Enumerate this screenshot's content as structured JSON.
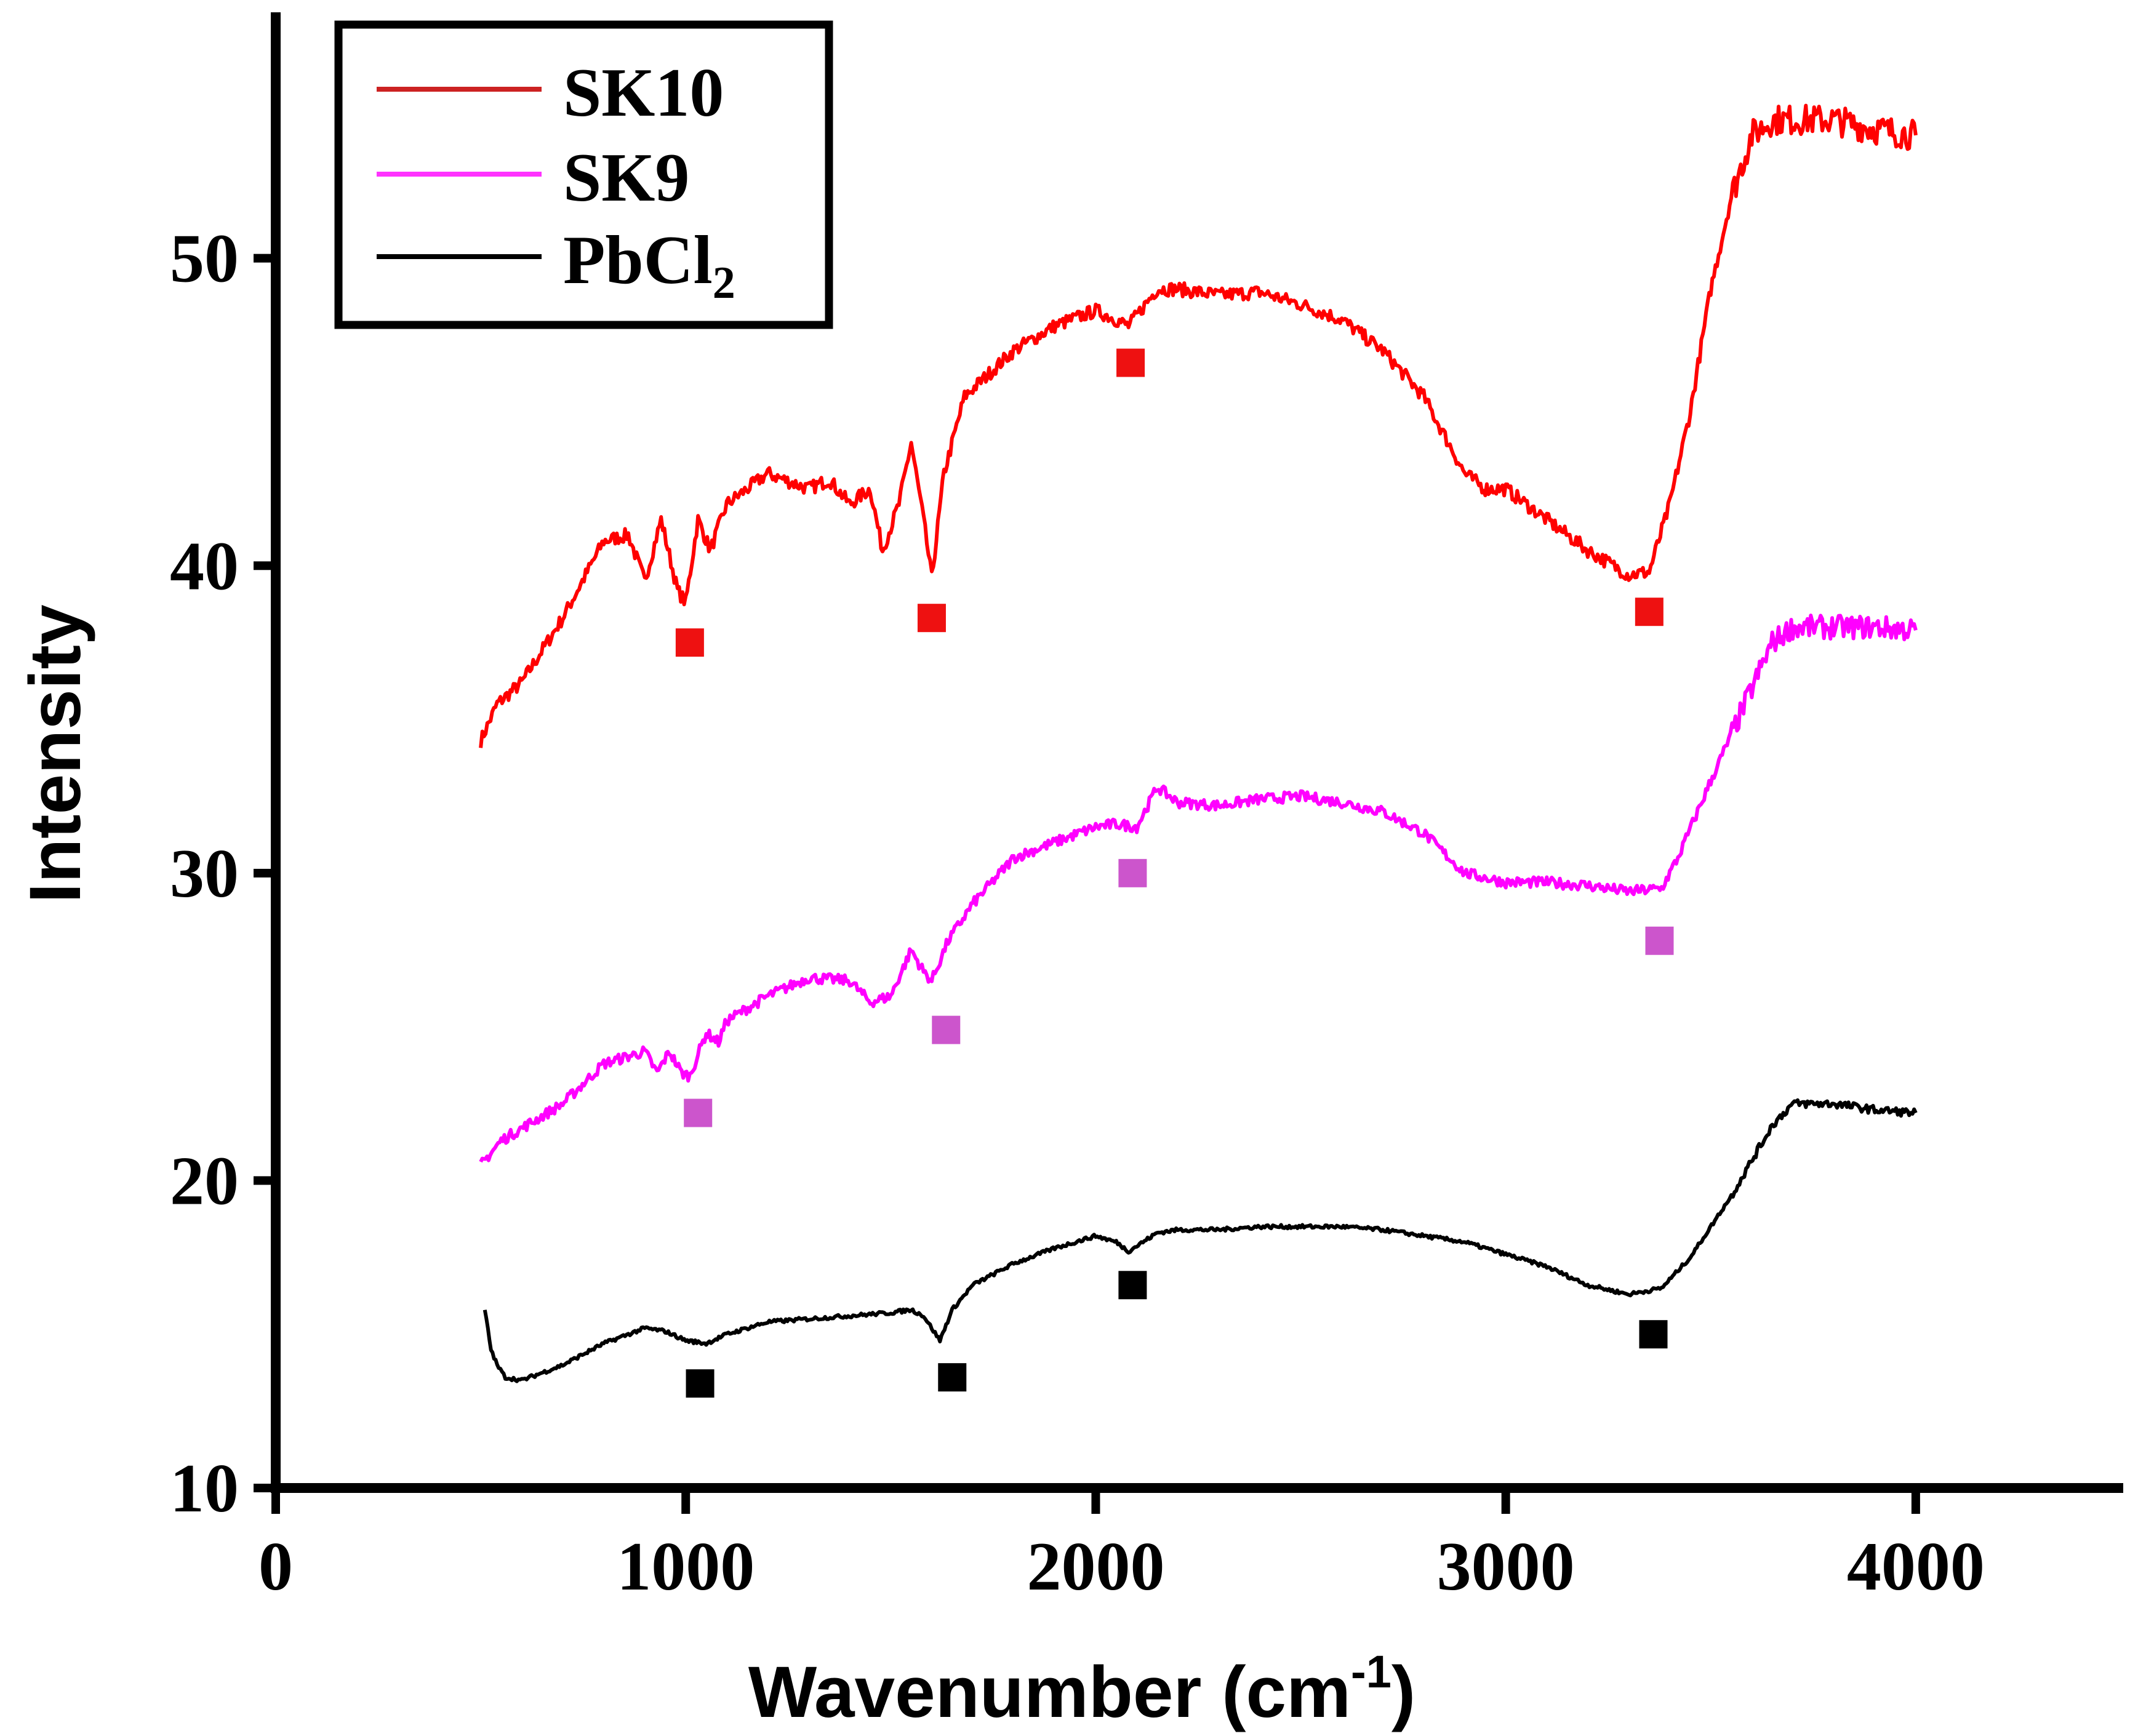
{
  "chart_data": {
    "type": "line",
    "title": "",
    "xlabel": "Wavenumber (cm",
    "xlabel_sup": "-1",
    "xlabel_close": ")",
    "ylabel": "Intensity",
    "xlim": [
      0,
      4500
    ],
    "ylim": [
      10,
      58
    ],
    "x_ticks": [
      0,
      1000,
      2000,
      3000,
      4000
    ],
    "x_tick_labels": [
      "0",
      "1000",
      "2000",
      "3000",
      "4000"
    ],
    "y_ticks": [
      10,
      20,
      30,
      40,
      50
    ],
    "y_tick_labels": [
      "10",
      "20",
      "30",
      "40",
      "50"
    ],
    "legend_position": "top-left",
    "series": [
      {
        "name": "SK10",
        "legend_label": "SK10",
        "legend_sub": "",
        "line_color": "#ff0000",
        "legend_color": "#cc2222",
        "marker_color": "#ee1111",
        "noise": 0.45,
        "x": [
          500,
          540,
          600,
          700,
          800,
          860,
          900,
          940,
          980,
          1000,
          1030,
          1060,
          1100,
          1200,
          1300,
          1350,
          1400,
          1450,
          1480,
          1520,
          1550,
          1580,
          1600,
          1630,
          1680,
          1800,
          1900,
          2000,
          2050,
          2080,
          2150,
          2200,
          2300,
          2400,
          2500,
          2600,
          2700,
          2800,
          2900,
          2950,
          3000,
          3100,
          3200,
          3300,
          3350,
          3400,
          3450,
          3500,
          3550,
          3600,
          3650,
          3700,
          3800,
          3900,
          4000
        ],
        "y": [
          34.3,
          35.5,
          36.2,
          38.3,
          40.8,
          41.0,
          39.5,
          41.5,
          39.2,
          38.8,
          41.5,
          40.5,
          42.0,
          43.0,
          42.5,
          42.8,
          42.0,
          42.5,
          40.5,
          42.0,
          44.0,
          41.5,
          39.6,
          43.0,
          45.5,
          47.0,
          47.8,
          48.3,
          48.0,
          47.8,
          49.0,
          49.0,
          48.8,
          48.9,
          48.5,
          48.0,
          47.0,
          45.5,
          43.0,
          42.5,
          42.5,
          41.5,
          40.5,
          39.7,
          39.8,
          42.0,
          45.0,
          49.0,
          52.0,
          54.0,
          54.5,
          54.5,
          54.5,
          54.2,
          54.0
        ],
        "markers": [
          [
            1010,
            37.5
          ],
          [
            1600,
            38.3
          ],
          [
            2085,
            46.6
          ],
          [
            3350,
            38.5
          ]
        ]
      },
      {
        "name": "SK9",
        "legend_label": "SK9",
        "legend_sub": "",
        "line_color": "#ff00ff",
        "legend_color": "#ff33ff",
        "marker_color": "#cc55cc",
        "noise": 0.35,
        "x": [
          500,
          550,
          600,
          700,
          800,
          900,
          930,
          960,
          990,
          1010,
          1050,
          1080,
          1100,
          1200,
          1300,
          1400,
          1450,
          1500,
          1550,
          1580,
          1600,
          1640,
          1700,
          1800,
          1900,
          2000,
          2050,
          2100,
          2150,
          2200,
          2300,
          2400,
          2500,
          2600,
          2700,
          2800,
          2900,
          3000,
          3100,
          3200,
          3300,
          3380,
          3420,
          3500,
          3600,
          3650,
          3700,
          3800,
          3900,
          4000
        ],
        "y": [
          20.5,
          21.3,
          21.7,
          22.5,
          23.8,
          24.2,
          23.5,
          24.2,
          23.5,
          23.4,
          24.8,
          24.5,
          25.2,
          26.0,
          26.6,
          26.5,
          25.8,
          26.0,
          27.5,
          26.8,
          26.5,
          27.8,
          29.0,
          30.5,
          31.0,
          31.5,
          31.6,
          31.5,
          32.8,
          32.3,
          32.2,
          32.4,
          32.5,
          32.3,
          32.0,
          31.3,
          30.0,
          29.7,
          29.7,
          29.6,
          29.4,
          29.5,
          30.5,
          33.0,
          36.0,
          37.5,
          38.0,
          38.0,
          38.0,
          37.9
        ],
        "markers": [
          [
            1030,
            22.2
          ],
          [
            1635,
            24.9
          ],
          [
            2090,
            30.0
          ],
          [
            3375,
            27.8
          ]
        ]
      },
      {
        "name": "PbCl2",
        "legend_label": "PbCl",
        "legend_sub": "2",
        "line_color": "#000000",
        "legend_color": "#000000",
        "marker_color": "#000000",
        "noise": 0.12,
        "x": [
          510,
          525,
          540,
          560,
          600,
          700,
          800,
          900,
          950,
          1000,
          1050,
          1100,
          1200,
          1300,
          1400,
          1500,
          1550,
          1580,
          1620,
          1650,
          1700,
          1800,
          1900,
          2000,
          2050,
          2080,
          2150,
          2200,
          2300,
          2400,
          2500,
          2600,
          2700,
          2800,
          2900,
          3000,
          3100,
          3200,
          3300,
          3380,
          3450,
          3550,
          3650,
          3700,
          3800,
          3900,
          4000
        ],
        "y": [
          15.8,
          14.5,
          14.0,
          13.6,
          13.5,
          14.0,
          14.7,
          15.2,
          15.1,
          14.8,
          14.7,
          15.0,
          15.4,
          15.5,
          15.6,
          15.7,
          15.8,
          15.6,
          14.8,
          15.8,
          16.6,
          17.3,
          17.8,
          18.2,
          18.0,
          17.7,
          18.3,
          18.4,
          18.4,
          18.5,
          18.5,
          18.5,
          18.4,
          18.2,
          18.0,
          17.6,
          17.2,
          16.6,
          16.3,
          16.5,
          17.5,
          19.5,
          21.8,
          22.5,
          22.5,
          22.3,
          22.2
        ],
        "markers": [
          [
            1035,
            13.4
          ],
          [
            1650,
            13.6
          ],
          [
            2090,
            16.6
          ],
          [
            3360,
            15.0
          ]
        ]
      }
    ]
  }
}
